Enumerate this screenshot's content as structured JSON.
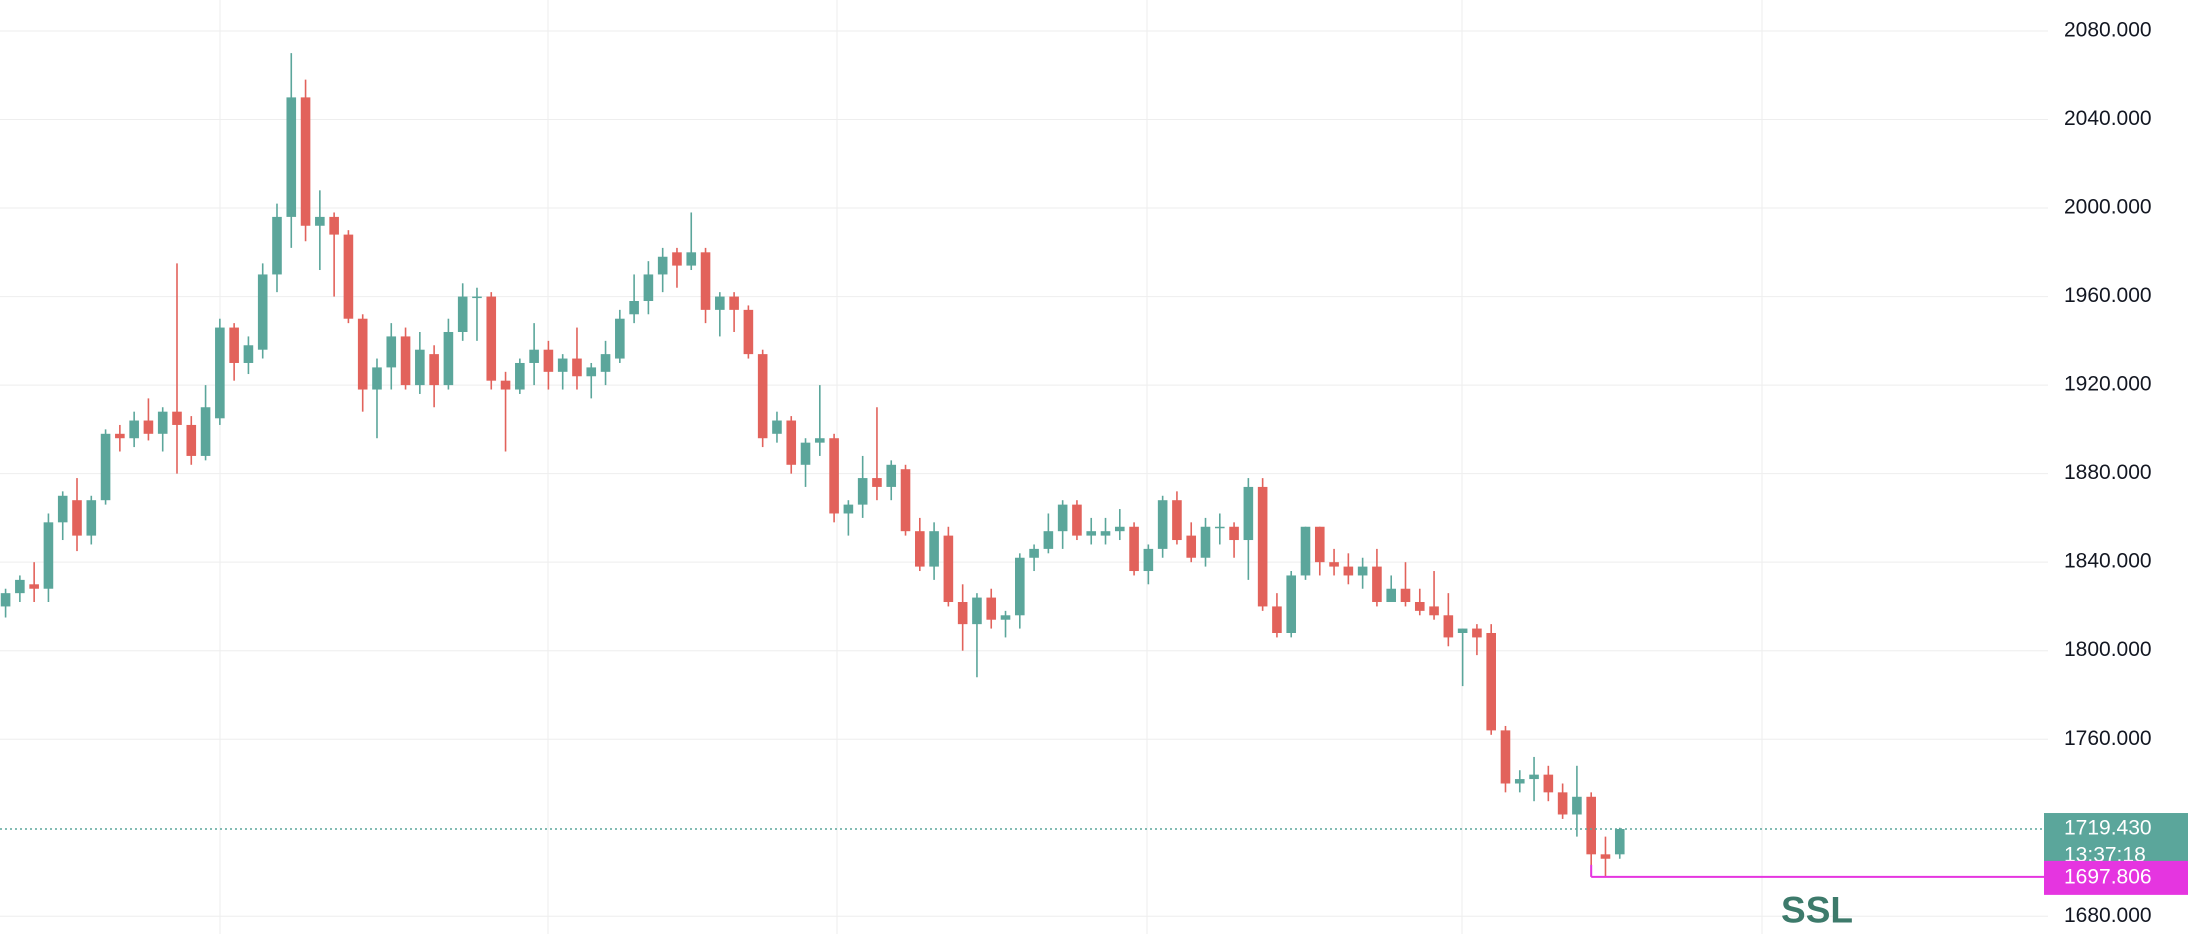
{
  "chart_data": {
    "type": "candlestick",
    "up_color": "#5ba69b",
    "down_color": "#e2625b",
    "grid": true,
    "ylim": [
      1672,
      2094
    ],
    "yticks": [
      {
        "value": 2080,
        "label": "2080.000"
      },
      {
        "value": 2040,
        "label": "2040.000"
      },
      {
        "value": 2000,
        "label": "2000.000"
      },
      {
        "value": 1960,
        "label": "1960.000"
      },
      {
        "value": 1920,
        "label": "1920.000"
      },
      {
        "value": 1880,
        "label": "1880.000"
      },
      {
        "value": 1840,
        "label": "1840.000"
      },
      {
        "value": 1800,
        "label": "1800.000"
      },
      {
        "value": 1760,
        "label": "1760.000"
      },
      {
        "value": 1680,
        "label": "1680.000"
      }
    ],
    "open": [
      1820,
      1826,
      1830,
      1828,
      1858,
      1868,
      1852,
      1868,
      1898,
      1896,
      1904,
      1898,
      1908,
      1902,
      1888,
      1905,
      1946,
      1930,
      1936,
      1970,
      1996,
      2050,
      1992,
      1996,
      1988,
      1950,
      1918,
      1928,
      1942,
      1920,
      1934,
      1920,
      1944,
      1960,
      1960,
      1922,
      1918,
      1930,
      1936,
      1926,
      1932,
      1924,
      1926,
      1932,
      1952,
      1958,
      1970,
      1980,
      1974,
      1980,
      1954,
      1960,
      1954,
      1934,
      1898,
      1904,
      1884,
      1894,
      1896,
      1862,
      1866,
      1878,
      1874,
      1882,
      1854,
      1838,
      1852,
      1822,
      1812,
      1824,
      1814,
      1816,
      1842,
      1846,
      1854,
      1866,
      1852,
      1852,
      1854,
      1856,
      1836,
      1846,
      1868,
      1852,
      1842,
      1856,
      1856,
      1850,
      1874,
      1820,
      1808,
      1834,
      1856,
      1840,
      1838,
      1834,
      1838,
      1822,
      1828,
      1822,
      1820,
      1816,
      1808,
      1810,
      1808,
      1764,
      1740,
      1742,
      1744,
      1736,
      1726,
      1734,
      1708,
      1708
    ],
    "high": [
      1828,
      1834,
      1840,
      1862,
      1872,
      1878,
      1870,
      1900,
      1902,
      1908,
      1914,
      1910,
      1975,
      1906,
      1920,
      1950,
      1948,
      1942,
      1975,
      2002,
      2070,
      2058,
      2008,
      1998,
      1990,
      1952,
      1932,
      1948,
      1946,
      1944,
      1938,
      1950,
      1966,
      1964,
      1962,
      1926,
      1932,
      1948,
      1940,
      1934,
      1946,
      1930,
      1940,
      1954,
      1970,
      1976,
      1982,
      1982,
      1998,
      1982,
      1962,
      1962,
      1956,
      1936,
      1908,
      1906,
      1896,
      1920,
      1898,
      1868,
      1888,
      1910,
      1886,
      1884,
      1860,
      1858,
      1856,
      1830,
      1826,
      1828,
      1818,
      1844,
      1848,
      1862,
      1868,
      1868,
      1860,
      1860,
      1864,
      1858,
      1848,
      1870,
      1872,
      1858,
      1860,
      1862,
      1858,
      1878,
      1878,
      1826,
      1836,
      1856,
      1856,
      1846,
      1844,
      1842,
      1846,
      1834,
      1840,
      1828,
      1836,
      1826,
      1810,
      1812,
      1812,
      1766,
      1746,
      1752,
      1748,
      1740,
      1748,
      1736,
      1716,
      1720
    ],
    "low": [
      1815,
      1822,
      1822,
      1822,
      1850,
      1845,
      1848,
      1866,
      1890,
      1892,
      1895,
      1890,
      1880,
      1884,
      1886,
      1902,
      1922,
      1925,
      1932,
      1962,
      1982,
      1985,
      1972,
      1960,
      1948,
      1908,
      1896,
      1918,
      1918,
      1916,
      1910,
      1918,
      1940,
      1940,
      1918,
      1890,
      1916,
      1920,
      1918,
      1918,
      1918,
      1914,
      1920,
      1930,
      1948,
      1952,
      1962,
      1964,
      1972,
      1948,
      1942,
      1944,
      1932,
      1892,
      1894,
      1880,
      1874,
      1888,
      1858,
      1852,
      1860,
      1868,
      1868,
      1852,
      1836,
      1832,
      1820,
      1800,
      1788,
      1810,
      1806,
      1810,
      1836,
      1844,
      1846,
      1850,
      1848,
      1848,
      1850,
      1834,
      1830,
      1842,
      1848,
      1840,
      1838,
      1848,
      1842,
      1832,
      1818,
      1806,
      1806,
      1832,
      1834,
      1834,
      1830,
      1828,
      1820,
      1822,
      1820,
      1816,
      1814,
      1802,
      1784,
      1798,
      1762,
      1736,
      1736,
      1732,
      1732,
      1724,
      1716,
      1698,
      1698,
      1706
    ],
    "close": [
      1826,
      1832,
      1828,
      1858,
      1870,
      1852,
      1868,
      1898,
      1896,
      1904,
      1898,
      1908,
      1902,
      1888,
      1910,
      1946,
      1930,
      1938,
      1970,
      1996,
      2050,
      1992,
      1996,
      1988,
      1950,
      1918,
      1928,
      1942,
      1920,
      1936,
      1920,
      1944,
      1960,
      1960,
      1922,
      1918,
      1930,
      1936,
      1926,
      1932,
      1924,
      1928,
      1934,
      1950,
      1958,
      1970,
      1978,
      1974,
      1980,
      1954,
      1960,
      1954,
      1934,
      1896,
      1904,
      1884,
      1894,
      1896,
      1862,
      1866,
      1878,
      1874,
      1884,
      1854,
      1838,
      1854,
      1822,
      1812,
      1824,
      1814,
      1816,
      1842,
      1846,
      1854,
      1866,
      1852,
      1854,
      1854,
      1856,
      1836,
      1846,
      1868,
      1850,
      1842,
      1856,
      1856,
      1850,
      1874,
      1820,
      1808,
      1834,
      1856,
      1840,
      1838,
      1834,
      1838,
      1822,
      1828,
      1822,
      1818,
      1816,
      1806,
      1810,
      1806,
      1764,
      1740,
      1742,
      1744,
      1736,
      1726,
      1734,
      1708,
      1706,
      1719.43
    ],
    "current_price": {
      "value": 1719.43,
      "label": "1719.430",
      "countdown": "13:37:18",
      "color": "#5ba69b"
    },
    "ssl_level": {
      "value": 1697.806,
      "label": "1697.806",
      "name": "SSL",
      "color": "#e535e0"
    }
  }
}
